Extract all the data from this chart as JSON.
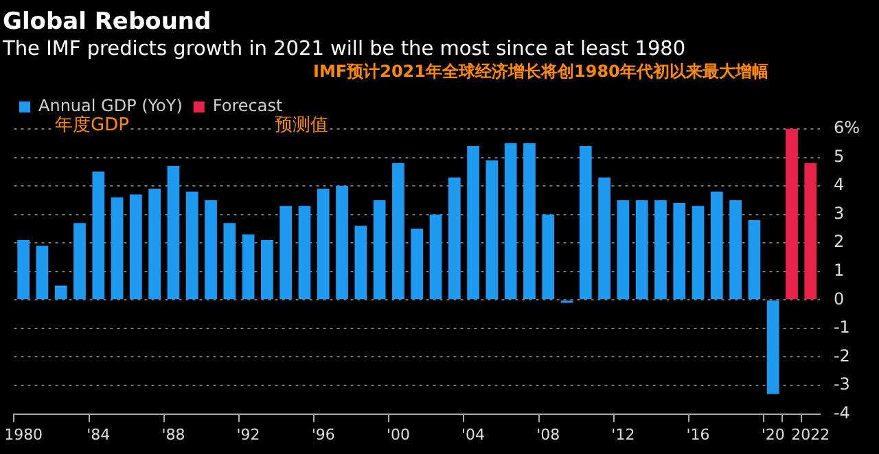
{
  "chart_data": {
    "type": "bar",
    "title": "Global Rebound",
    "subtitle": "The IMF predicts growth in 2021 will be the most since at least 1980",
    "annotations": [
      "IMF预计2021年全球经济增长将创1980年代初以来最大增幅",
      "年度GDP",
      "预测值"
    ],
    "categories": [
      "1980",
      null,
      null,
      null,
      "'84",
      null,
      null,
      null,
      "'88",
      null,
      null,
      null,
      "'92",
      null,
      null,
      null,
      "'96",
      null,
      null,
      null,
      "'00",
      null,
      null,
      null,
      "'04",
      null,
      null,
      null,
      "'08",
      null,
      null,
      null,
      "'12",
      null,
      null,
      null,
      "'16",
      null,
      null,
      null,
      "'20",
      null,
      "2022"
    ],
    "series": [
      {
        "name": "Annual GDP (YoY)",
        "color": "#1e9bf0",
        "values": [
          2.1,
          1.9,
          0.5,
          2.7,
          4.5,
          3.6,
          3.7,
          3.9,
          4.7,
          3.8,
          3.5,
          2.7,
          2.3,
          2.1,
          3.3,
          3.3,
          3.9,
          4.0,
          2.6,
          3.5,
          4.8,
          2.5,
          3.0,
          4.3,
          5.4,
          4.9,
          5.5,
          5.5,
          3.0,
          -0.1,
          5.4,
          4.3,
          3.5,
          3.5,
          3.5,
          3.4,
          3.3,
          3.8,
          3.5,
          2.8,
          -3.3,
          null,
          null
        ]
      },
      {
        "name": "Forecast",
        "color": "#e8234a",
        "values": [
          null,
          null,
          null,
          null,
          null,
          null,
          null,
          null,
          null,
          null,
          null,
          null,
          null,
          null,
          null,
          null,
          null,
          null,
          null,
          null,
          null,
          null,
          null,
          null,
          null,
          null,
          null,
          null,
          null,
          null,
          null,
          null,
          null,
          null,
          null,
          null,
          null,
          null,
          null,
          null,
          null,
          6.0,
          4.8
        ]
      }
    ],
    "ylim": [
      -4,
      6
    ],
    "yticks": [
      -4,
      -3,
      -2,
      -1,
      0,
      1,
      2,
      3,
      4,
      5,
      {
        "value": 6,
        "label": "6%"
      }
    ],
    "grid": "y",
    "legend": "top left"
  }
}
